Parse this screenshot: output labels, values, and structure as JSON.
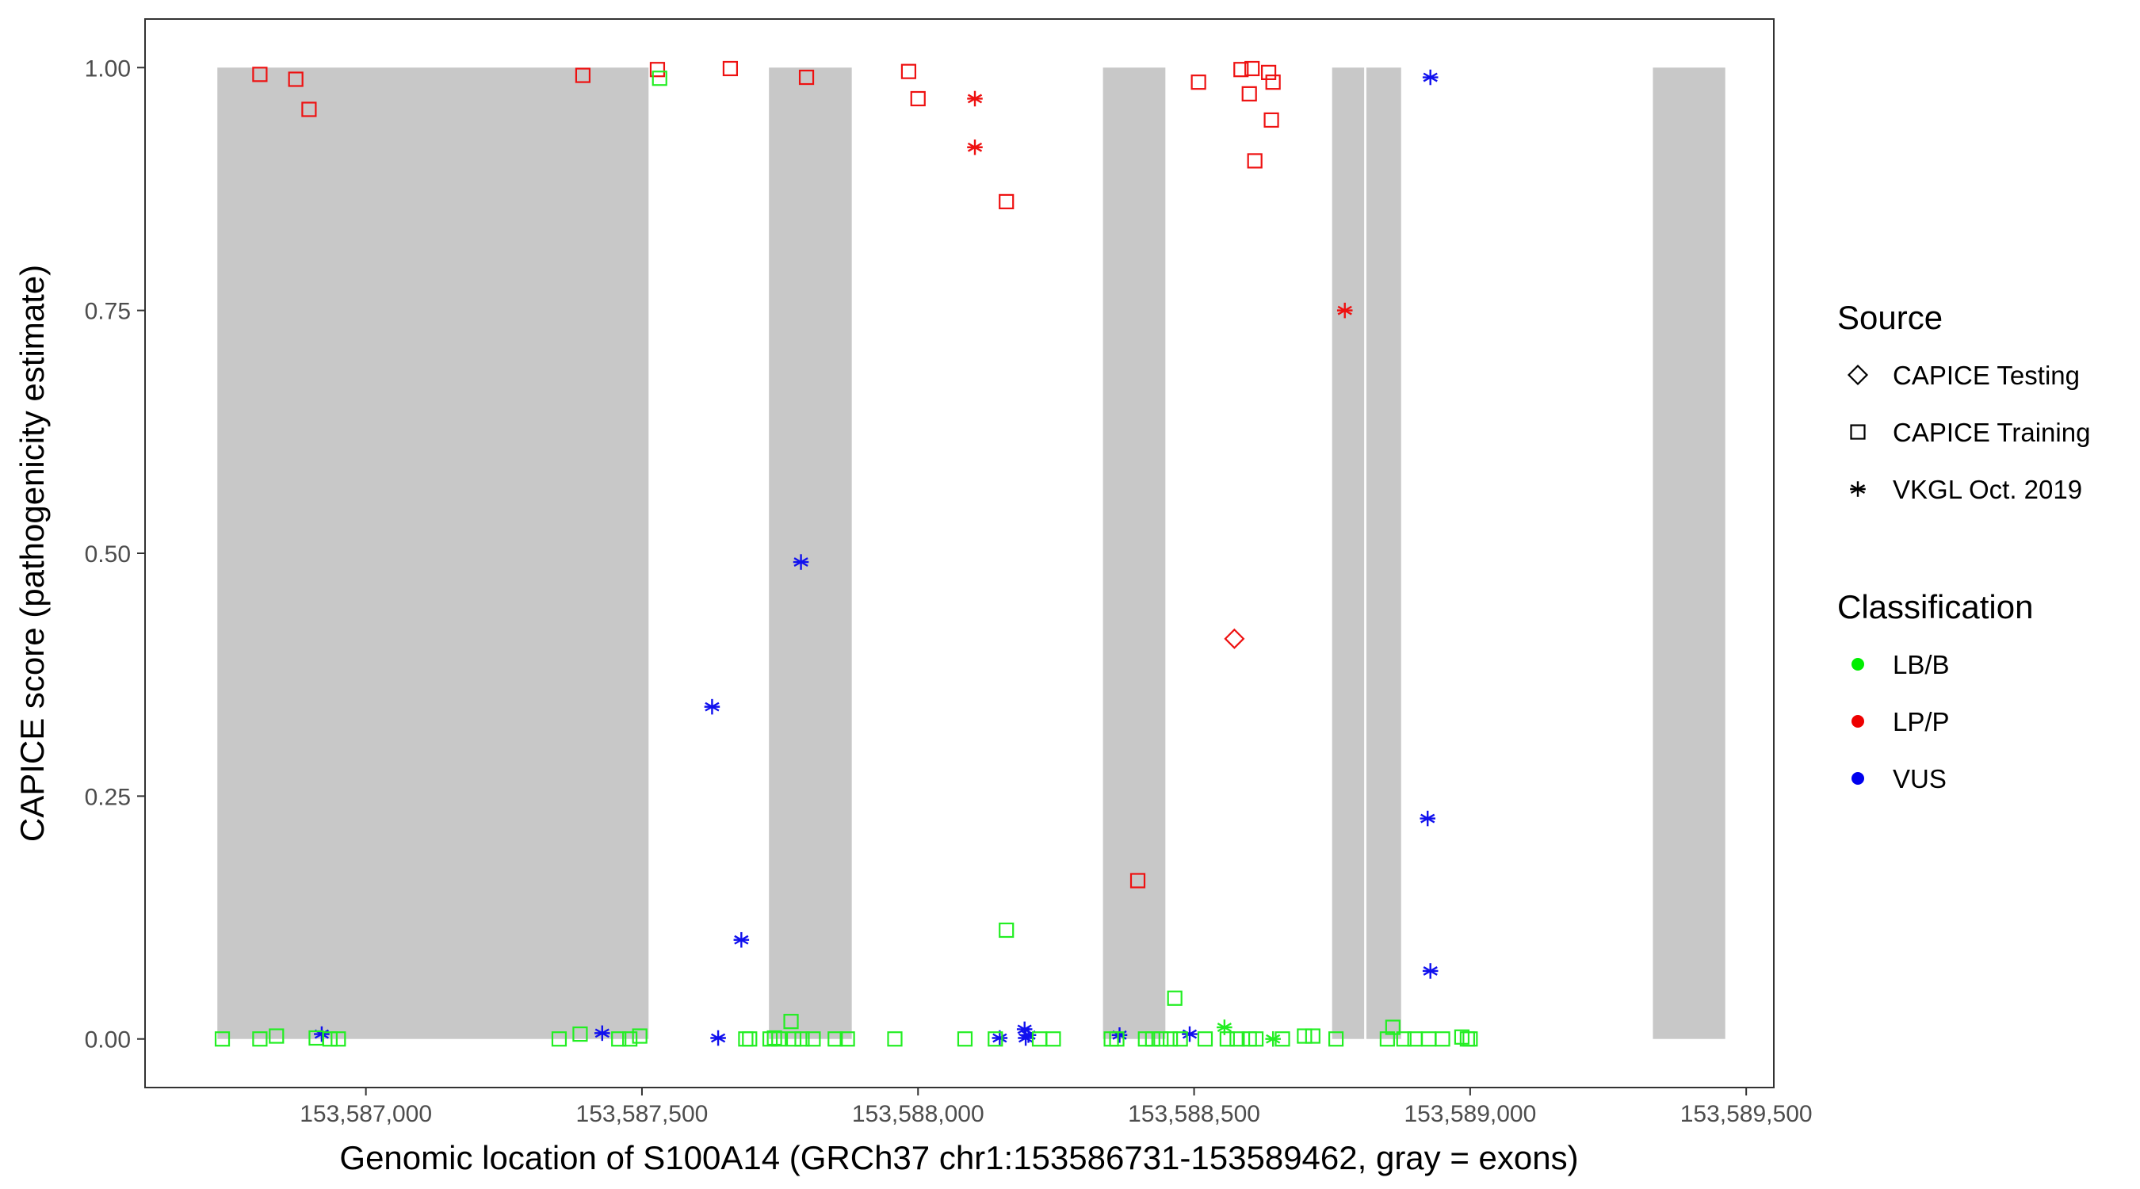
{
  "chart_data": {
    "type": "scatter",
    "title": "",
    "xlabel": "Genomic location of S100A14 (GRCh37 chr1:153586731-153589462, gray = exons)",
    "ylabel": "CAPICE score (pathogenicity estimate)",
    "xlim": [
      153586600,
      153589550
    ],
    "ylim": [
      -0.05,
      1.05
    ],
    "x_ticks": [
      153587000,
      153587500,
      153588000,
      153588500,
      153589000,
      153589500
    ],
    "x_tick_labels": [
      "153,587,000",
      "153,587,500",
      "153,588,000",
      "153,588,500",
      "153,589,000",
      "153,589,500"
    ],
    "y_ticks": [
      0,
      0.25,
      0.5,
      0.75,
      1.0
    ],
    "y_tick_labels": [
      "0.00",
      "0.25",
      "0.50",
      "0.75",
      "1.00"
    ],
    "grid": false,
    "legend_position": "right",
    "exons": [
      [
        153586731,
        153587512
      ],
      [
        153587730,
        153587880
      ],
      [
        153588335,
        153588448
      ],
      [
        153588750,
        153588808
      ],
      [
        153588812,
        153588875
      ],
      [
        153589331,
        153589462
      ]
    ],
    "legends": [
      {
        "title": "Source",
        "items": [
          {
            "label": "CAPICE Testing",
            "shape": "diamond"
          },
          {
            "label": "CAPICE Training",
            "shape": "square"
          },
          {
            "label": "VKGL Oct. 2019",
            "shape": "asterisk"
          }
        ]
      },
      {
        "title": "Classification",
        "items": [
          {
            "label": "LB/B",
            "color": "#00ee00"
          },
          {
            "label": "LP/P",
            "color": "#ee0000"
          },
          {
            "label": "VUS",
            "color": "#0000ee"
          }
        ]
      }
    ],
    "colors": {
      "LB/B": "#22ee22",
      "LP/P": "#ee1111",
      "VUS": "#1111ee",
      "exon": "#c8c8c8"
    },
    "series": [
      {
        "source": "CAPICE Training",
        "classification": "LP/P",
        "points": [
          [
            153586808,
            0.993
          ],
          [
            153586873,
            0.988
          ],
          [
            153586897,
            0.957
          ],
          [
            153587393,
            0.992
          ],
          [
            153587528,
            0.998
          ],
          [
            153587660,
            0.999
          ],
          [
            153587798,
            0.99
          ],
          [
            153587983,
            0.996
          ],
          [
            153588000,
            0.968
          ],
          [
            153588160,
            0.862
          ],
          [
            153588398,
            0.163
          ],
          [
            153588508,
            0.985
          ],
          [
            153588585,
            0.998
          ],
          [
            153588605,
            0.999
          ],
          [
            153588600,
            0.973
          ],
          [
            153588610,
            0.904
          ],
          [
            153588635,
            0.995
          ],
          [
            153588640,
            0.946
          ],
          [
            153588643,
            0.985
          ]
        ]
      },
      {
        "source": "VKGL Oct. 2019",
        "classification": "LP/P",
        "points": [
          [
            153588103,
            0.968
          ],
          [
            153588103,
            0.918
          ],
          [
            153588773,
            0.75
          ]
        ]
      },
      {
        "source": "CAPICE Testing",
        "classification": "LP/P",
        "points": [
          [
            153588573,
            0.412
          ]
        ]
      },
      {
        "source": "VKGL Oct. 2019",
        "classification": "VUS",
        "points": [
          [
            153586920,
            0.005
          ],
          [
            153587428,
            0.006
          ],
          [
            153587627,
            0.342
          ],
          [
            153587680,
            0.102
          ],
          [
            153587638,
            0.001
          ],
          [
            153587788,
            0.491
          ],
          [
            153588148,
            0.001
          ],
          [
            153588193,
            0.01
          ],
          [
            153588200,
            0.004
          ],
          [
            153588195,
            0.001
          ],
          [
            153588365,
            0.004
          ],
          [
            153588492,
            0.005
          ],
          [
            153588928,
            0.99
          ],
          [
            153588923,
            0.227
          ],
          [
            153588928,
            0.07
          ]
        ]
      },
      {
        "source": "VKGL Oct. 2019",
        "classification": "LB/B",
        "points": [
          [
            153588555,
            0.012
          ],
          [
            153588643,
            0.0
          ]
        ]
      },
      {
        "source": "CAPICE Training",
        "classification": "LB/B",
        "points": [
          [
            153586740,
            0.0
          ],
          [
            153586808,
            0.0
          ],
          [
            153586838,
            0.003
          ],
          [
            153586910,
            0.001
          ],
          [
            153586935,
            0.0
          ],
          [
            153586950,
            0.0
          ],
          [
            153587350,
            0.0
          ],
          [
            153587388,
            0.005
          ],
          [
            153587458,
            0.0
          ],
          [
            153587478,
            0.0
          ],
          [
            153587496,
            0.003
          ],
          [
            153587532,
            0.989
          ],
          [
            153587688,
            0.0
          ],
          [
            153587695,
            0.0
          ],
          [
            153587732,
            0.0
          ],
          [
            153587740,
            0.001
          ],
          [
            153587748,
            0.0
          ],
          [
            153587770,
            0.018
          ],
          [
            153587775,
            0.0
          ],
          [
            153587790,
            0.0
          ],
          [
            153587810,
            0.0
          ],
          [
            153587850,
            0.0
          ],
          [
            153587872,
            0.0
          ],
          [
            153587958,
            0.0
          ],
          [
            153588085,
            0.0
          ],
          [
            153588140,
            0.0
          ],
          [
            153588160,
            0.112
          ],
          [
            153588220,
            0.0
          ],
          [
            153588245,
            0.0
          ],
          [
            153588350,
            0.0
          ],
          [
            153588360,
            0.0
          ],
          [
            153588412,
            0.0
          ],
          [
            153588425,
            0.0
          ],
          [
            153588440,
            0.0
          ],
          [
            153588457,
            0.0
          ],
          [
            153588465,
            0.042
          ],
          [
            153588475,
            0.0
          ],
          [
            153588520,
            0.0
          ],
          [
            153588560,
            0.0
          ],
          [
            153588578,
            0.0
          ],
          [
            153588600,
            0.0
          ],
          [
            153588612,
            0.0
          ],
          [
            153588660,
            0.0
          ],
          [
            153588700,
            0.003
          ],
          [
            153588715,
            0.003
          ],
          [
            153588757,
            0.0
          ],
          [
            153588850,
            0.0
          ],
          [
            153588860,
            0.012
          ],
          [
            153588880,
            0.0
          ],
          [
            153588900,
            0.0
          ],
          [
            153588925,
            0.0
          ],
          [
            153588950,
            0.0
          ],
          [
            153588985,
            0.002
          ],
          [
            153588995,
            0.0
          ],
          [
            153589000,
            0.0
          ]
        ]
      }
    ]
  }
}
